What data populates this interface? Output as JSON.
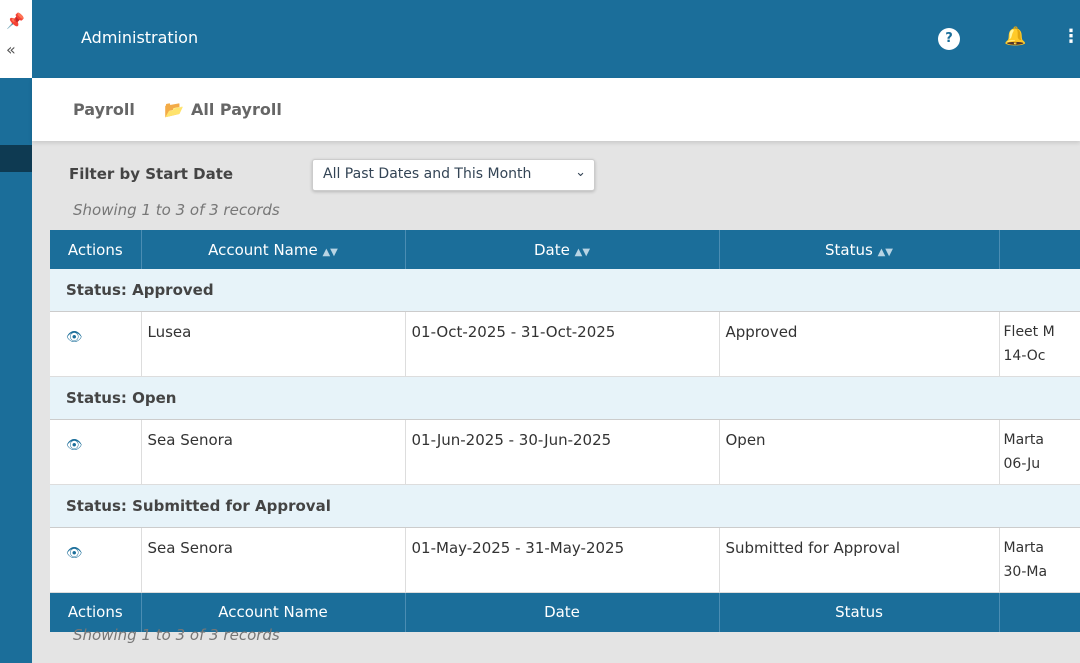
{
  "header": {
    "title": "Administration",
    "icons": [
      "help-icon",
      "bell-icon",
      "kebab-menu-icon"
    ]
  },
  "breadcrumb": {
    "root": "Payroll",
    "current": "All Payroll"
  },
  "filter": {
    "label": "Filter by Start Date",
    "value": "All Past Dates and This Month"
  },
  "showing": "Showing 1 to 3 of 3 records",
  "columns": [
    "Actions",
    "Account Name",
    "Date",
    "Status",
    ""
  ],
  "groups": [
    {
      "label": "Status: Approved",
      "row": {
        "account": "Lusea",
        "date": "01-Oct-2025 - 31-Oct-2025",
        "status": "Approved",
        "extra1": "Fleet M",
        "extra2": "14-Oc"
      }
    },
    {
      "label": "Status: Open",
      "row": {
        "account": "Sea Senora",
        "date": "01-Jun-2025 - 30-Jun-2025",
        "status": "Open",
        "extra1": "Marta",
        "extra2": "06-Ju"
      }
    },
    {
      "label": "Status: Submitted for Approval",
      "row": {
        "account": "Sea Senora",
        "date": "01-May-2025 - 31-May-2025",
        "status": "Submitted for Approval",
        "extra1": "Marta",
        "extra2": "30-Ma"
      }
    }
  ],
  "colors": {
    "primary": "#1b6e9a",
    "group_bg": "#e7f3f9"
  }
}
